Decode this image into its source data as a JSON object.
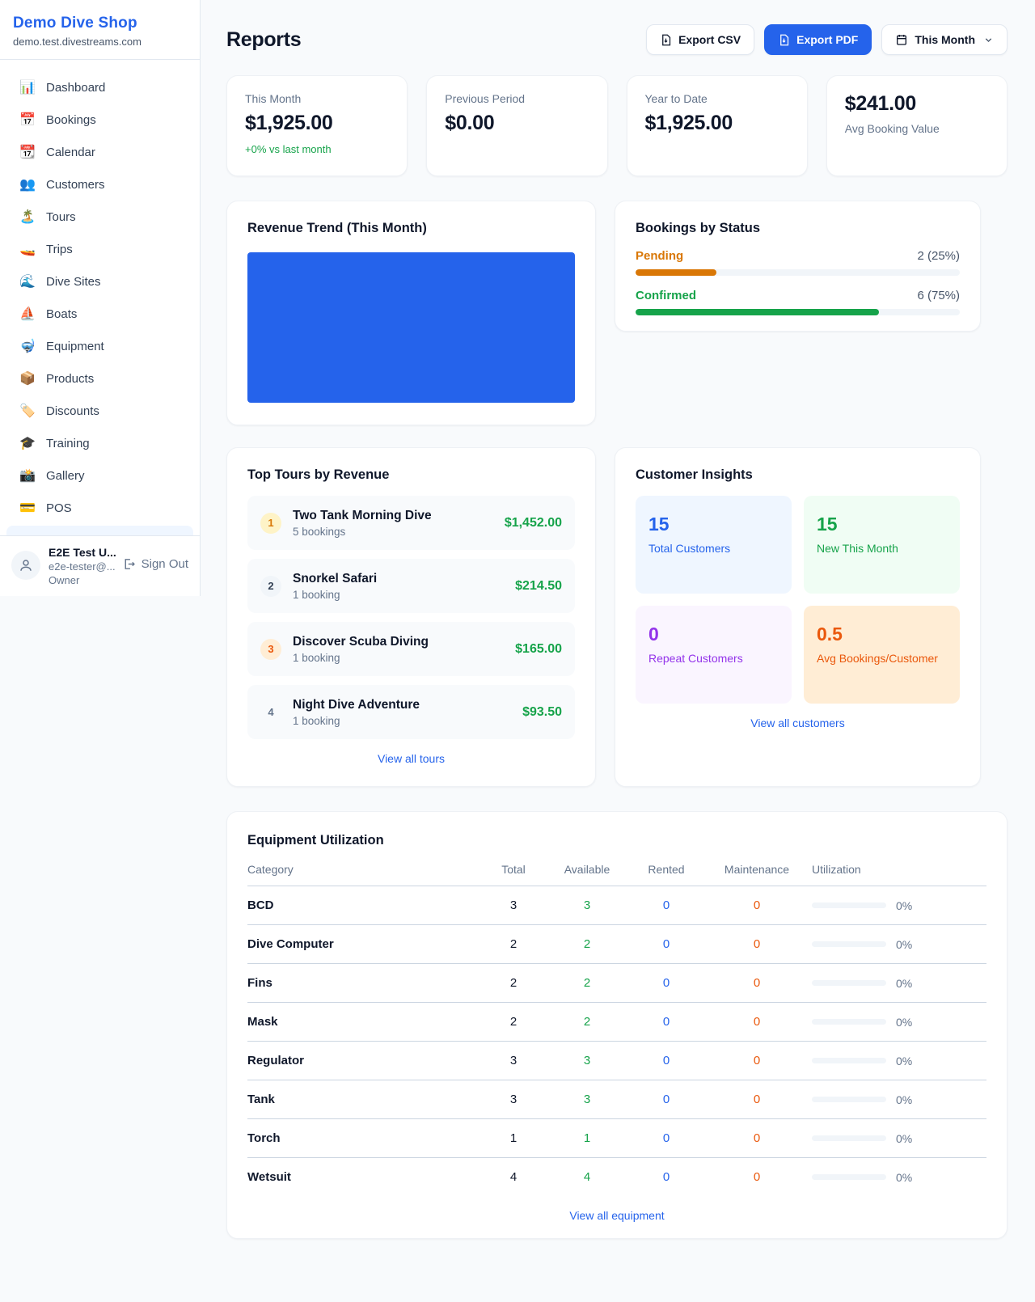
{
  "sidebar": {
    "shop_name": "Demo Dive Shop",
    "shop_domain": "demo.test.divestreams.com",
    "items": [
      {
        "label": "Dashboard",
        "icon": "📊"
      },
      {
        "label": "Bookings",
        "icon": "📅"
      },
      {
        "label": "Calendar",
        "icon": "📆"
      },
      {
        "label": "Customers",
        "icon": "👥"
      },
      {
        "label": "Tours",
        "icon": "🏝️"
      },
      {
        "label": "Trips",
        "icon": "🚤"
      },
      {
        "label": "Dive Sites",
        "icon": "🌊"
      },
      {
        "label": "Boats",
        "icon": "⛵"
      },
      {
        "label": "Equipment",
        "icon": "🤿"
      },
      {
        "label": "Products",
        "icon": "📦"
      },
      {
        "label": "Discounts",
        "icon": "🏷️"
      },
      {
        "label": "Training",
        "icon": "🎓"
      },
      {
        "label": "Gallery",
        "icon": "📸"
      },
      {
        "label": "POS",
        "icon": "💳"
      }
    ],
    "user": {
      "name": "E2E Test U...",
      "email": "e2e-tester@...",
      "role": "Owner",
      "sign_out_label": "Sign Out"
    }
  },
  "header": {
    "title": "Reports",
    "export_csv_label": "Export CSV",
    "export_pdf_label": "Export PDF",
    "period_label": "This Month"
  },
  "stats": [
    {
      "label": "This Month",
      "value": "$1,925.00",
      "delta": "+0% vs last month"
    },
    {
      "label": "Previous Period",
      "value": "$0.00"
    },
    {
      "label": "Year to Date",
      "value": "$1,925.00"
    },
    {
      "label": "Avg Booking Value",
      "value": "$241.00"
    }
  ],
  "revenue_trend": {
    "title": "Revenue Trend (This Month)",
    "fill_color": "#2563eb"
  },
  "bookings_by_status": {
    "title": "Bookings by Status",
    "rows": [
      {
        "label": "Pending",
        "value": "2 (25%)",
        "percent": 25,
        "color": "#d97706",
        "label_color": "#d97706"
      },
      {
        "label": "Confirmed",
        "value": "6 (75%)",
        "percent": 75,
        "color": "#16a34a",
        "label_color": "#16a34a"
      }
    ]
  },
  "top_tours": {
    "title": "Top Tours by Revenue",
    "items": [
      {
        "rank": "1",
        "name": "Two Tank Morning Dive",
        "bookings": "5 bookings",
        "revenue": "$1,452.00"
      },
      {
        "rank": "2",
        "name": "Snorkel Safari",
        "bookings": "1 booking",
        "revenue": "$214.50"
      },
      {
        "rank": "3",
        "name": "Discover Scuba Diving",
        "bookings": "1 booking",
        "revenue": "$165.00"
      },
      {
        "rank": "4",
        "name": "Night Dive Adventure",
        "bookings": "1 booking",
        "revenue": "$93.50"
      }
    ],
    "view_all_label": "View all tours"
  },
  "customer_insights": {
    "title": "Customer Insights",
    "tiles": [
      {
        "value": "15",
        "label": "Total Customers",
        "bg": "#eff6ff",
        "color": "#2563eb"
      },
      {
        "value": "15",
        "label": "New This Month",
        "bg": "#f0fdf4",
        "color": "#16a34a"
      },
      {
        "value": "0",
        "label": "Repeat Customers",
        "bg": "#faf5ff",
        "color": "#9333ea"
      },
      {
        "value": "0.5",
        "label": "Avg Bookings/Customer",
        "bg": "#ffedd5",
        "color": "#ea580c"
      }
    ],
    "view_all_label": "View all customers"
  },
  "equipment": {
    "title": "Equipment Utilization",
    "columns": [
      "Category",
      "Total",
      "Available",
      "Rented",
      "Maintenance",
      "Utilization"
    ],
    "rows": [
      {
        "category": "BCD",
        "total": "3",
        "available": "3",
        "rented": "0",
        "maintenance": "0",
        "utilization": "0%"
      },
      {
        "category": "Dive Computer",
        "total": "2",
        "available": "2",
        "rented": "0",
        "maintenance": "0",
        "utilization": "0%"
      },
      {
        "category": "Fins",
        "total": "2",
        "available": "2",
        "rented": "0",
        "maintenance": "0",
        "utilization": "0%"
      },
      {
        "category": "Mask",
        "total": "2",
        "available": "2",
        "rented": "0",
        "maintenance": "0",
        "utilization": "0%"
      },
      {
        "category": "Regulator",
        "total": "3",
        "available": "3",
        "rented": "0",
        "maintenance": "0",
        "utilization": "0%"
      },
      {
        "category": "Tank",
        "total": "3",
        "available": "3",
        "rented": "0",
        "maintenance": "0",
        "utilization": "0%"
      },
      {
        "category": "Torch",
        "total": "1",
        "available": "1",
        "rented": "0",
        "maintenance": "0",
        "utilization": "0%"
      },
      {
        "category": "Wetsuit",
        "total": "4",
        "available": "4",
        "rented": "0",
        "maintenance": "0",
        "utilization": "0%"
      }
    ],
    "view_all_label": "View all equipment"
  }
}
